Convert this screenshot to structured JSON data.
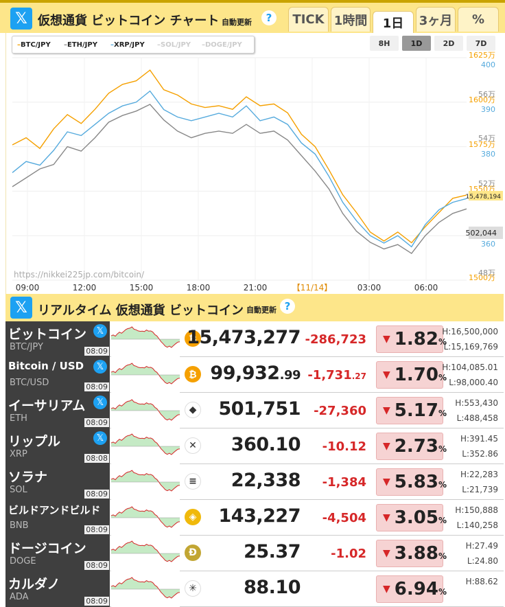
{
  "header": {
    "title": "仮想通貨 ビットコイン チャート",
    "auto": "自動更新",
    "help": "?",
    "x_icon": "𝕏"
  },
  "tabs": [
    "TICK",
    "1時間",
    "1日",
    "3ヶ月",
    "%"
  ],
  "legend": [
    "BTC/JPY",
    "ETH/JPY",
    "XRP/JPY",
    "SOL/JPY",
    "DOGE/JPY"
  ],
  "legend_colors": [
    "#f5a000",
    "#888888",
    "#55aadd",
    "#cccccc",
    "#cccccc"
  ],
  "ranges": [
    "8H",
    "1D",
    "2D",
    "7D"
  ],
  "watermark": "https://nikkei225jp.com/bitcoin/",
  "chart_data": {
    "type": "line",
    "x_ticks": [
      "09:00",
      "12:00",
      "15:00",
      "18:00",
      "21:00",
      "【11/14】",
      "03:00",
      "06:00"
    ],
    "btc_axis_ticks": [
      "1625万",
      "1600万",
      "1575万",
      "1550万",
      "1500万"
    ],
    "eth_axis_ticks": [
      "56万",
      "54万",
      "52万",
      "50万",
      "48万"
    ],
    "xrp_axis_ticks": [
      "400",
      "390",
      "380",
      "370",
      "360"
    ],
    "btc_ylim": [
      15000000,
      16250000
    ],
    "last_labels": {
      "btc": "15,478,194",
      "eth": "502,044"
    },
    "series": [
      {
        "name": "BTC/JPY",
        "color": "#f5a000",
        "values": [
          15760000,
          15800000,
          15740000,
          15850000,
          15930000,
          15880000,
          15960000,
          16050000,
          16100000,
          16120000,
          16180000,
          16070000,
          16040000,
          15990000,
          15970000,
          15980000,
          15960000,
          16030000,
          15980000,
          15990000,
          15940000,
          15820000,
          15750000,
          15620000,
          15480000,
          15380000,
          15270000,
          15220000,
          15270000,
          15210000,
          15300000,
          15380000,
          15460000,
          15478194
        ]
      },
      {
        "name": "ETH/JPY",
        "color": "#888888",
        "values": [
          512000,
          516000,
          520000,
          522000,
          530000,
          528000,
          534000,
          541000,
          544000,
          546000,
          549000,
          542000,
          537000,
          534000,
          536000,
          537000,
          536000,
          540000,
          536000,
          537000,
          533000,
          526000,
          519000,
          511000,
          500000,
          492000,
          487000,
          484000,
          486000,
          482000,
          490000,
          496000,
          500000,
          502044
        ]
      },
      {
        "name": "XRP/JPY",
        "color": "#55aadd",
        "values": [
          369,
          372,
          371,
          375,
          380,
          379,
          382,
          385,
          387,
          388,
          391,
          386,
          384,
          383,
          384,
          385,
          384,
          387,
          383,
          384,
          382,
          377,
          374,
          368,
          361,
          356,
          352,
          350,
          352,
          349,
          355,
          359,
          361,
          362
        ]
      }
    ]
  },
  "header2": {
    "title": "リアルタイム 仮想通貨 ビットコイン",
    "auto": "自動更新",
    "help": "?"
  },
  "rows": [
    {
      "name": "ビットコイン",
      "sym": "BTC/JPY",
      "time": "08:09",
      "coin": "₿",
      "coin_color": "#f5a000",
      "price": "15,473,277",
      "price_dec": "",
      "chg": "-286,723",
      "chg_dec": "",
      "pct": "1.82",
      "high": "H:16,500,000",
      "low": "L:15,169,769",
      "x": true
    },
    {
      "name": "Bitcoin / USD",
      "sym": "BTC/USD",
      "time": "08:09",
      "coin": "₿",
      "coin_color": "#f5a000",
      "price": "99,932",
      "price_dec": ".99",
      "chg": "-1,731",
      "chg_dec": ".27",
      "pct": "1.70",
      "high": "H:104,085.01",
      "low": "L:98,000.40",
      "x": true
    },
    {
      "name": "イーサリアム",
      "sym": "ETH",
      "time": "08:09",
      "coin": "◆",
      "coin_color": "#ffffff",
      "price": "501,751",
      "price_dec": "",
      "chg": "-27,360",
      "chg_dec": "",
      "pct": "5.17",
      "high": "H:553,430",
      "low": "L:488,458",
      "x": true
    },
    {
      "name": "リップル",
      "sym": "XRP",
      "time": "08:08",
      "coin": "✕",
      "coin_color": "#ffffff",
      "price": "360.10",
      "price_dec": "",
      "chg": "-10.12",
      "chg_dec": "",
      "pct": "2.73",
      "high": "H:391.45",
      "low": "L:352.86",
      "x": true
    },
    {
      "name": "ソラナ",
      "sym": "SOL",
      "time": "08:09",
      "coin": "≡",
      "coin_color": "#ffffff",
      "price": "22,338",
      "price_dec": "",
      "chg": "-1,384",
      "chg_dec": "",
      "pct": "5.83",
      "high": "H:22,283",
      "low": "L:21,739",
      "x": false
    },
    {
      "name": "ビルドアンドビルド",
      "sym": "BNB",
      "time": "08:09",
      "coin": "◈",
      "coin_color": "#f0b90b",
      "price": "143,227",
      "price_dec": "",
      "chg": "-4,504",
      "chg_dec": "",
      "pct": "3.05",
      "high": "H:150,888",
      "low": "L:140,258",
      "x": false
    },
    {
      "name": "ドージコイン",
      "sym": "DOGE",
      "time": "08:09",
      "coin": "Ð",
      "coin_color": "#c2a633",
      "price": "25.37",
      "price_dec": "",
      "chg": "-1.02",
      "chg_dec": "",
      "pct": "3.88",
      "high": "H:27.49",
      "low": "L:24.80",
      "x": false
    },
    {
      "name": "カルダノ",
      "sym": "ADA",
      "time": "08:09",
      "coin": "✳",
      "coin_color": "#ffffff",
      "price": "88.10",
      "price_dec": "",
      "chg": "",
      "chg_dec": "",
      "pct": "6.94",
      "high": "H:88.62",
      "low": "",
      "x": false
    }
  ]
}
